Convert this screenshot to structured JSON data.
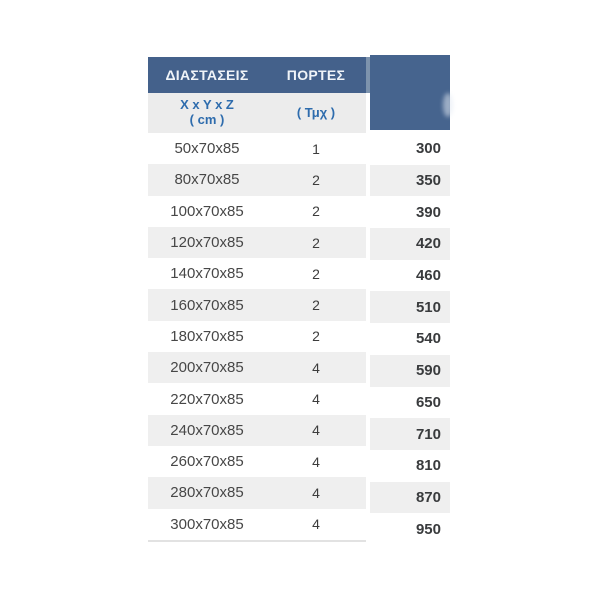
{
  "table": {
    "header": {
      "dimensions_label": "ΔΙΑΣΤΑΣΕΙΣ",
      "doors_label": "ΠΟΡΤΕΣ"
    },
    "subheader": {
      "dimensions_line1": "X x Y x Z",
      "dimensions_line2": "( cm )",
      "doors_unit": "( Τμχ )"
    },
    "rows": [
      {
        "dimensions": "50x70x85",
        "doors": "1",
        "price": "300"
      },
      {
        "dimensions": "80x70x85",
        "doors": "2",
        "price": "350"
      },
      {
        "dimensions": "100x70x85",
        "doors": "2",
        "price": "390"
      },
      {
        "dimensions": "120x70x85",
        "doors": "2",
        "price": "420"
      },
      {
        "dimensions": "140x70x85",
        "doors": "2",
        "price": "460"
      },
      {
        "dimensions": "160x70x85",
        "doors": "2",
        "price": "510"
      },
      {
        "dimensions": "180x70x85",
        "doors": "2",
        "price": "540"
      },
      {
        "dimensions": "200x70x85",
        "doors": "4",
        "price": "590"
      },
      {
        "dimensions": "220x70x85",
        "doors": "4",
        "price": "650"
      },
      {
        "dimensions": "240x70x85",
        "doors": "4",
        "price": "710"
      },
      {
        "dimensions": "260x70x85",
        "doors": "4",
        "price": "810"
      },
      {
        "dimensions": "280x70x85",
        "doors": "4",
        "price": "870"
      },
      {
        "dimensions": "300x70x85",
        "doors": "4",
        "price": "950"
      }
    ]
  },
  "colors": {
    "header_bg": "#44618b",
    "price_header_bg": "#46648e",
    "row_alt_bg": "#efefef",
    "subheader_bg": "#ececec",
    "subheader_text": "#2e6cad",
    "header_text": "#f0f4f8",
    "price_text": "#393b3d"
  }
}
